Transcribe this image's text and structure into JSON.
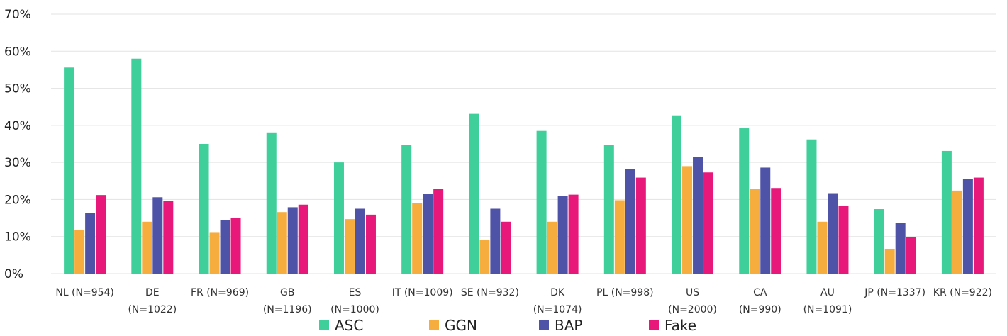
{
  "chart_data": {
    "type": "bar",
    "categories": [
      [
        "NL (N=954)"
      ],
      [
        "DE",
        "(N=1022)"
      ],
      [
        "FR (N=969)"
      ],
      [
        "GB",
        "(N=1196)"
      ],
      [
        "ES",
        "(N=1000)"
      ],
      [
        "IT (N=1009)"
      ],
      [
        "SE (N=932)"
      ],
      [
        "DK",
        "(N=1074)"
      ],
      [
        "PL (N=998)"
      ],
      [
        "US",
        "(N=2000)"
      ],
      [
        "CA",
        "(N=990)"
      ],
      [
        "AU",
        "(N=1091)"
      ],
      [
        "JP (N=1337)"
      ],
      [
        "KR (N=922)"
      ]
    ],
    "series": [
      {
        "name": "ASC",
        "color": "#3ecf9a",
        "values": [
          55.6,
          58.0,
          35.0,
          38.1,
          30.0,
          34.7,
          43.1,
          38.5,
          34.7,
          42.7,
          39.2,
          36.2,
          17.4,
          33.1
        ]
      },
      {
        "name": "GGN",
        "color": "#f7ad3e",
        "values": [
          11.7,
          14.0,
          11.2,
          16.6,
          14.7,
          19.0,
          9.0,
          14.0,
          19.8,
          29.0,
          22.8,
          14.0,
          6.7,
          22.4
        ]
      },
      {
        "name": "BAP",
        "color": "#4f53a8",
        "values": [
          16.3,
          20.6,
          14.4,
          17.9,
          17.5,
          21.6,
          17.5,
          21.0,
          28.2,
          31.4,
          28.6,
          21.7,
          13.6,
          25.5
        ]
      },
      {
        "name": "Fake",
        "color": "#e8177a",
        "values": [
          21.2,
          19.7,
          15.1,
          18.6,
          15.9,
          22.8,
          14.0,
          21.3,
          25.9,
          27.3,
          23.1,
          18.2,
          9.8,
          25.9
        ]
      }
    ],
    "yticks": [
      "0%",
      "10%",
      "20%",
      "30%",
      "40%",
      "50%",
      "60%",
      "70%"
    ],
    "ylim": [
      0,
      70
    ],
    "grid": true,
    "legend_position": "bottom"
  }
}
